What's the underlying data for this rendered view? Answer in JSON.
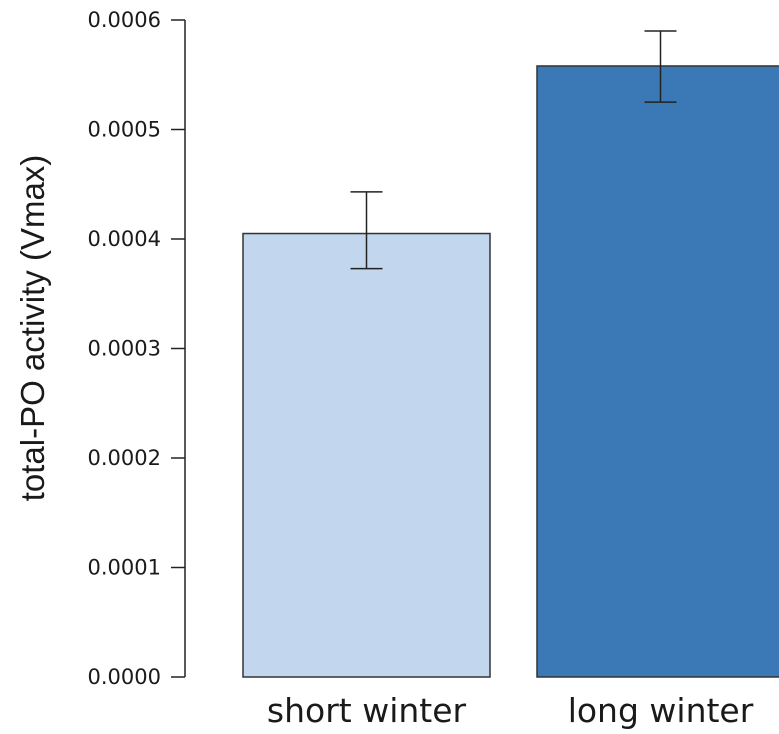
{
  "chart_data": {
    "type": "bar",
    "title": "",
    "xlabel": "",
    "ylabel": "total-PO activity  (Vmax)",
    "ylim": [
      0,
      0.0006
    ],
    "yticks": [
      "0.0000",
      "0.0001",
      "0.0002",
      "0.0003",
      "0.0004",
      "0.0005",
      "0.0006"
    ],
    "ytick_values": [
      0,
      0.0001,
      0.0002,
      0.0003,
      0.0004,
      0.0005,
      0.0006
    ],
    "categories": [
      "short winter",
      "long winter"
    ],
    "values": [
      0.000405,
      0.000558
    ],
    "error_low": [
      0.000373,
      0.000525
    ],
    "error_high": [
      0.000443,
      0.00059
    ],
    "colors": [
      "#c2d6ee",
      "#3a78b6"
    ],
    "grid": false
  }
}
